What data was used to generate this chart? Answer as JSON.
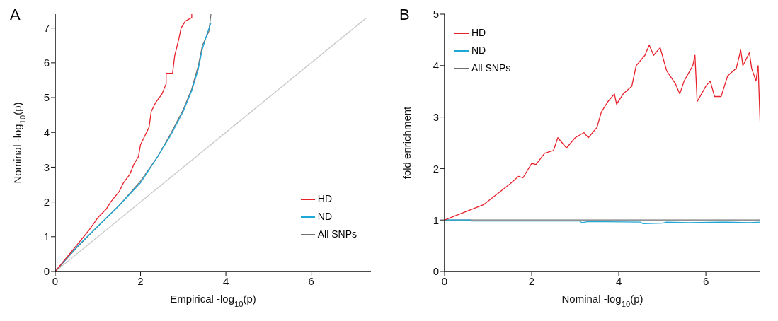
{
  "chart_data": [
    {
      "type": "line",
      "title": "A",
      "xlabel": "Empirical -log$_{10}$(p)",
      "ylabel": "Nominal -log$_{10}$(p)",
      "xlim": [
        0,
        7.4
      ],
      "ylim": [
        0,
        7.4
      ],
      "xticks": [
        0,
        2,
        4,
        6
      ],
      "yticks": [
        0,
        1,
        2,
        3,
        4,
        5,
        6,
        7
      ],
      "legend": "bottom right",
      "marker": "none",
      "line_style": "solid",
      "series": [
        {
          "color": "#c8c8c8",
          "x": [
            0,
            7.3
          ],
          "values": [
            0,
            7.3
          ]
        },
        {
          "name": "All SNPs",
          "color": "#707070",
          "x": [
            0,
            0.5,
            1,
            1.5,
            2,
            2.4,
            2.7,
            3,
            3.2,
            3.35,
            3.45,
            3.6,
            3.65
          ],
          "values": [
            0,
            0.68,
            1.3,
            1.9,
            2.6,
            3.3,
            3.95,
            4.65,
            5.25,
            5.9,
            6.5,
            6.9,
            7.4
          ]
        },
        {
          "name": "ND",
          "color": "#1ea8d8",
          "x": [
            0,
            0.5,
            1,
            1.5,
            2,
            2.4,
            2.7,
            3,
            3.2,
            3.35,
            3.45,
            3.55,
            3.65
          ],
          "values": [
            0,
            0.7,
            1.3,
            1.9,
            2.55,
            3.3,
            3.9,
            4.6,
            5.2,
            5.8,
            6.4,
            6.8,
            7.15
          ]
        },
        {
          "name": "HD",
          "color": "#e8202a",
          "x": [
            0,
            0.2,
            0.5,
            0.8,
            1,
            1.2,
            1.3,
            1.5,
            1.6,
            1.75,
            1.85,
            1.95,
            2,
            2.1,
            2.2,
            2.25,
            2.35,
            2.5,
            2.6,
            2.6,
            2.75,
            2.8,
            2.9,
            2.95,
            3.05,
            3.2,
            3.2
          ],
          "values": [
            0,
            0.3,
            0.75,
            1.2,
            1.55,
            1.8,
            2,
            2.3,
            2.55,
            2.8,
            3.1,
            3.3,
            3.65,
            3.9,
            4.15,
            4.6,
            4.85,
            5.1,
            5.4,
            5.7,
            5.7,
            6.2,
            6.7,
            7,
            7.2,
            7.3,
            7.4
          ]
        }
      ]
    },
    {
      "type": "line",
      "title": "B",
      "xlabel": "Nominal -log$_{10}$(p)",
      "ylabel": "fold enrichment",
      "xlim": [
        0,
        7.25
      ],
      "ylim": [
        0,
        5
      ],
      "xticks": [
        0,
        2,
        4,
        6
      ],
      "yticks": [
        0,
        1,
        2,
        3,
        4,
        5
      ],
      "legend": "top left",
      "marker": "none",
      "line_style": "solid",
      "series": [
        {
          "name": "All SNPs",
          "color": "#707070",
          "x": [
            0,
            7.25
          ],
          "values": [
            1,
            1
          ]
        },
        {
          "name": "ND",
          "color": "#1ea8d8",
          "x": [
            0,
            0.6,
            0.61,
            3.1,
            3.15,
            3.3,
            4.5,
            4.55,
            5,
            5.1,
            5.6,
            6.5,
            7,
            7.25
          ],
          "values": [
            1,
            1,
            0.98,
            0.98,
            0.95,
            0.97,
            0.96,
            0.93,
            0.94,
            0.96,
            0.95,
            0.96,
            0.95,
            0.96
          ]
        },
        {
          "name": "HD",
          "color": "#e8202a",
          "x": [
            0,
            0.3,
            0.6,
            0.9,
            1.2,
            1.5,
            1.7,
            1.8,
            2,
            2.1,
            2.3,
            2.5,
            2.6,
            2.7,
            2.8,
            3,
            3.2,
            3.3,
            3.5,
            3.6,
            3.75,
            3.9,
            3.95,
            4.1,
            4.3,
            4.4,
            4.6,
            4.7,
            4.8,
            4.95,
            5.1,
            5.3,
            5.4,
            5.5,
            5.7,
            5.75,
            5.8,
            6,
            6.1,
            6.2,
            6.35,
            6.5,
            6.7,
            6.8,
            6.85,
            7,
            7.05,
            7.15,
            7.2,
            7.25
          ],
          "values": [
            1,
            1.1,
            1.2,
            1.3,
            1.5,
            1.7,
            1.85,
            1.82,
            2.1,
            2.08,
            2.3,
            2.35,
            2.6,
            2.5,
            2.4,
            2.6,
            2.7,
            2.6,
            2.8,
            3.1,
            3.3,
            3.45,
            3.25,
            3.45,
            3.6,
            4,
            4.2,
            4.4,
            4.2,
            4.35,
            3.9,
            3.65,
            3.45,
            3.7,
            4,
            4.2,
            3.3,
            3.6,
            3.7,
            3.4,
            3.4,
            3.8,
            3.95,
            4.3,
            4,
            4.25,
            3.95,
            3.7,
            4,
            2.75
          ]
        }
      ]
    }
  ]
}
